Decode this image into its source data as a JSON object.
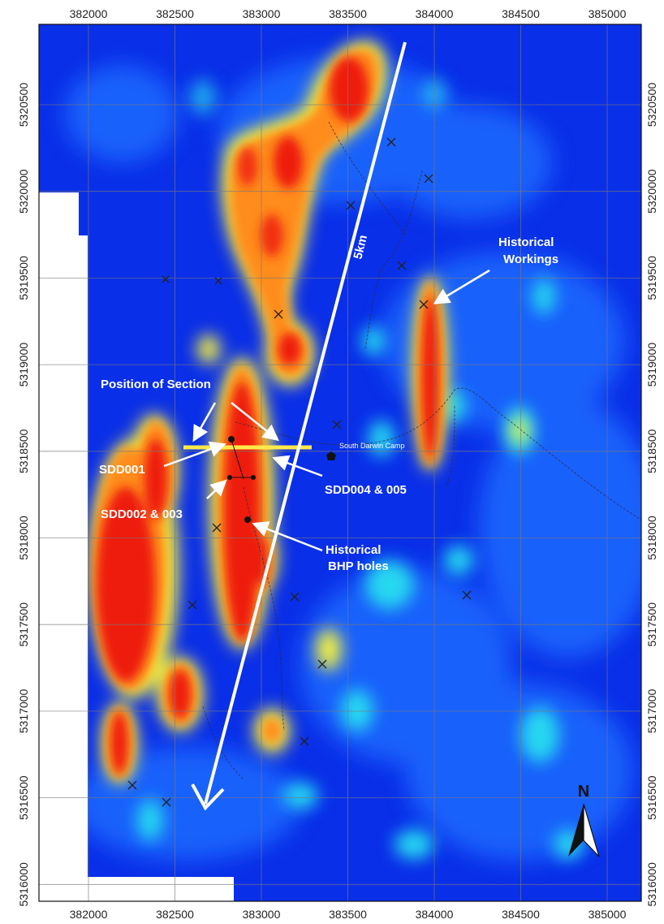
{
  "map": {
    "x_ticks": [
      "382000",
      "382500",
      "383000",
      "383500",
      "384000",
      "384500",
      "385000"
    ],
    "y_ticks": [
      "5320500",
      "5320000",
      "5319500",
      "5319000",
      "5318500",
      "5318000",
      "5317500",
      "5317000",
      "5316500",
      "5316000"
    ],
    "colors": {
      "background_low": "#0a2fe8",
      "low_mid": "#1f6bff",
      "mid": "#28d8f0",
      "high_mid": "#f7f23a",
      "high": "#ff8c1a",
      "peak": "#ee1c10",
      "section_line": "#ffe94a",
      "annotation": "#ffffff"
    }
  },
  "annotations": {
    "position_of_section": "Position of Section",
    "sdd001": "SDD001",
    "sdd002_003": "SDD002 & 003",
    "sdd004_005": "SDD004 & 005",
    "historical_bhp_line1": "Historical",
    "historical_bhp_line2": "BHP holes",
    "historical_workings_line1": "Historical",
    "historical_workings_line2": "Workings",
    "camp_label": "South Darwin Camp",
    "scale_label": "5km"
  },
  "north_arrow": {
    "label": "N"
  }
}
